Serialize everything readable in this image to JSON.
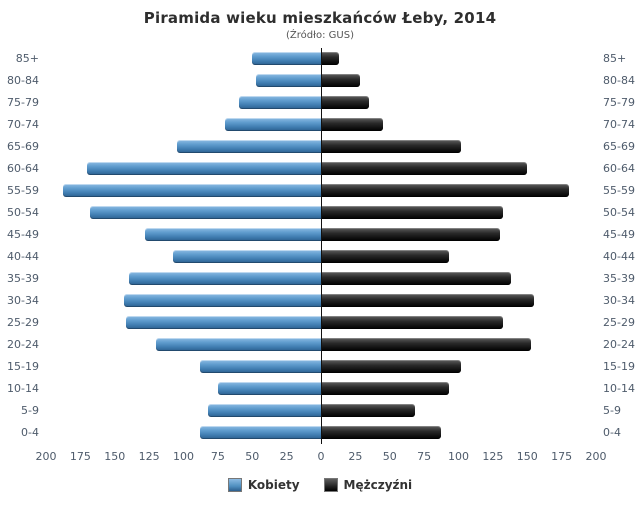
{
  "chart_data": {
    "type": "bar",
    "variant": "population-pyramid",
    "title": "Piramida wieku mieszkańców Łeby, 2014",
    "subtitle": "(Źródło: GUS)",
    "categories_top_to_bottom": [
      "85+",
      "80-84",
      "75-79",
      "70-74",
      "65-69",
      "60-64",
      "55-59",
      "50-54",
      "45-49",
      "40-44",
      "35-39",
      "30-34",
      "25-29",
      "20-24",
      "15-19",
      "10-14",
      "5-9",
      "0-4"
    ],
    "series": [
      {
        "name": "Kobiety",
        "side": "left",
        "color": "#4f8fc0",
        "values": [
          50,
          47,
          60,
          70,
          105,
          170,
          188,
          168,
          128,
          108,
          140,
          143,
          142,
          120,
          88,
          75,
          82,
          88
        ]
      },
      {
        "name": "Mężczyźni",
        "side": "right",
        "color": "#111111",
        "values": [
          13,
          28,
          35,
          45,
          102,
          150,
          180,
          132,
          130,
          93,
          138,
          155,
          132,
          153,
          102,
          93,
          68,
          87
        ]
      }
    ],
    "xlim": [
      0,
      200
    ],
    "x_ticks": [
      200,
      175,
      150,
      125,
      100,
      75,
      50,
      25,
      0,
      25,
      50,
      75,
      100,
      125,
      150,
      175,
      200
    ],
    "grid": "off",
    "legend_position": "bottom-center",
    "background": "#ffffff"
  }
}
